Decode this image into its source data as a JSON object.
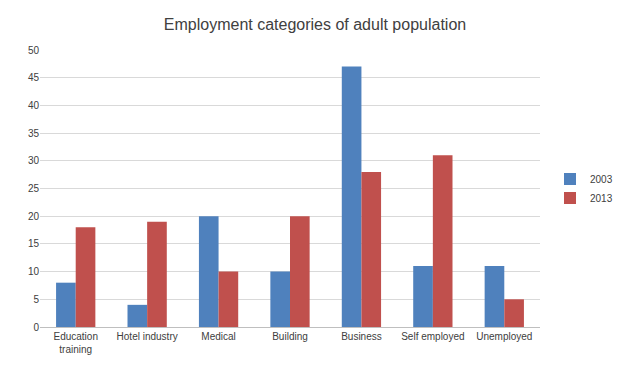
{
  "chart_data": {
    "type": "bar",
    "title": "Employment categories of adult population",
    "categories": [
      "Education training",
      "Hotel industry",
      "Medical",
      "Building",
      "Business",
      "Self employed",
      "Unemployed"
    ],
    "series": [
      {
        "name": "2003",
        "color": "#4f81bd",
        "values": [
          8,
          4,
          20,
          10,
          47,
          11,
          11
        ]
      },
      {
        "name": "2013",
        "color": "#c0504d",
        "values": [
          18,
          19,
          10,
          20,
          28,
          31,
          5
        ]
      }
    ],
    "ylim": [
      0,
      50
    ],
    "yticks": [
      0,
      5,
      10,
      15,
      20,
      25,
      30,
      35,
      40,
      45,
      50
    ],
    "grid": true,
    "legend": "right"
  }
}
